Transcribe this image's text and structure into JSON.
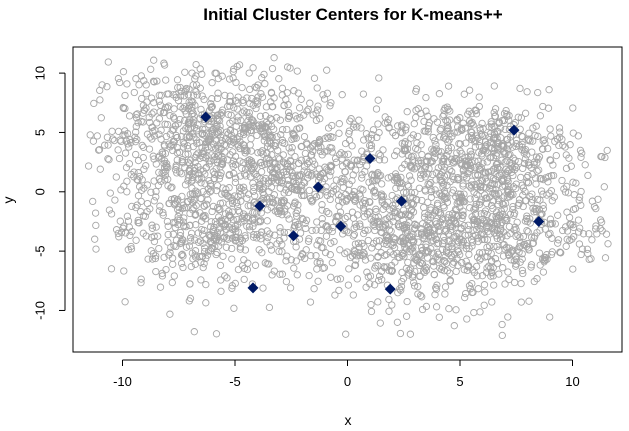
{
  "chart_data": {
    "type": "scatter",
    "title": "Initial Cluster Centers for K-means++",
    "xlabel": "x",
    "ylabel": "y",
    "xlim": [
      -12.2,
      12.2
    ],
    "ylim": [
      -13.5,
      12.2
    ],
    "x_ticks": [
      -10,
      -5,
      0,
      5,
      10
    ],
    "y_ticks": [
      -10,
      -5,
      0,
      5,
      10
    ],
    "grid": false,
    "legend": "none",
    "colors": {
      "points": "#a6a6a6",
      "centers": "#001a66"
    },
    "point_clusters": [
      {
        "cx": -6.2,
        "cy": 5.2,
        "sx": 2.6,
        "sy": 2.6,
        "n": 650
      },
      {
        "cx": -6.0,
        "cy": -2.5,
        "sx": 2.4,
        "sy": 2.8,
        "n": 520
      },
      {
        "cx": -1.5,
        "cy": 1.0,
        "sx": 2.4,
        "sy": 2.6,
        "n": 380
      },
      {
        "cx": 5.6,
        "cy": 3.5,
        "sx": 2.3,
        "sy": 2.1,
        "n": 520
      },
      {
        "cx": 3.2,
        "cy": -4.0,
        "sx": 2.5,
        "sy": 2.9,
        "n": 650
      },
      {
        "cx": 7.4,
        "cy": -2.6,
        "sx": 2.1,
        "sy": 2.3,
        "n": 330
      }
    ],
    "centers": [
      {
        "x": -6.3,
        "y": 6.3
      },
      {
        "x": 7.4,
        "y": 5.2
      },
      {
        "x": 1.0,
        "y": 2.8
      },
      {
        "x": -1.3,
        "y": 0.4
      },
      {
        "x": -3.9,
        "y": -1.2
      },
      {
        "x": 2.4,
        "y": -0.8
      },
      {
        "x": -0.3,
        "y": -2.9
      },
      {
        "x": -2.4,
        "y": -3.7
      },
      {
        "x": 8.5,
        "y": -2.5
      },
      {
        "x": -4.2,
        "y": -8.1
      },
      {
        "x": 1.9,
        "y": -8.2
      }
    ]
  }
}
